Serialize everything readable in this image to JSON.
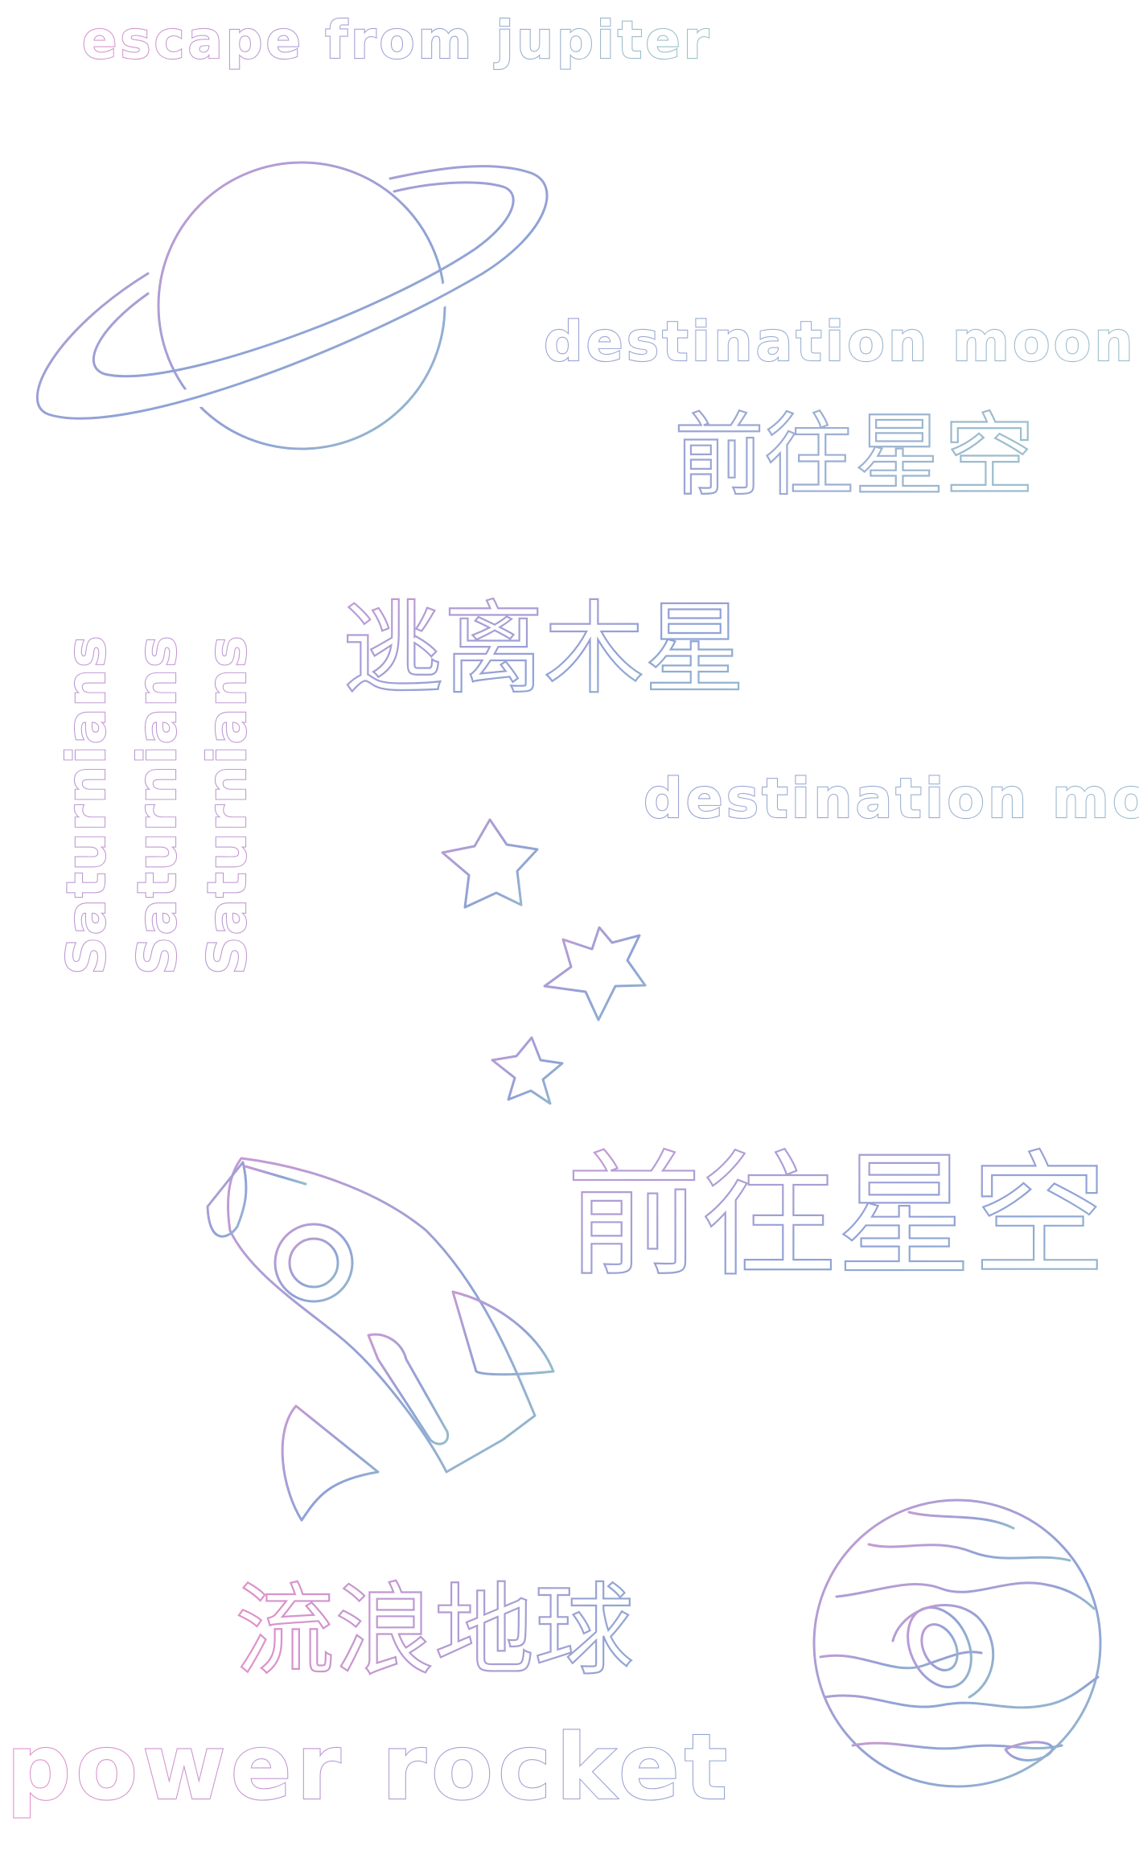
{
  "colors": {
    "pink": "#dc8fcd",
    "violet": "#b59bd4",
    "blue": "#8aa0d4",
    "teal": "#9cc2c8"
  },
  "texts": {
    "escape_from_jupiter": "escape from jupiter",
    "destination_moon_1": "destination moon",
    "destination_moon_2": "destination moon",
    "qianwang_xingkong_small": "前往星空",
    "taoli_muxing": "逃离木星",
    "qianwang_xingkong_large": "前往星空",
    "saturnians_1": "Saturnians",
    "saturnians_2": "Saturnians",
    "saturnians_3": "Saturnians",
    "liulang_diqiu": "流浪地球",
    "power_rocket": "power rocket"
  },
  "icons": [
    "saturn-icon",
    "star-icon",
    "star-icon",
    "star-icon",
    "rocket-icon",
    "jupiter-icon"
  ]
}
